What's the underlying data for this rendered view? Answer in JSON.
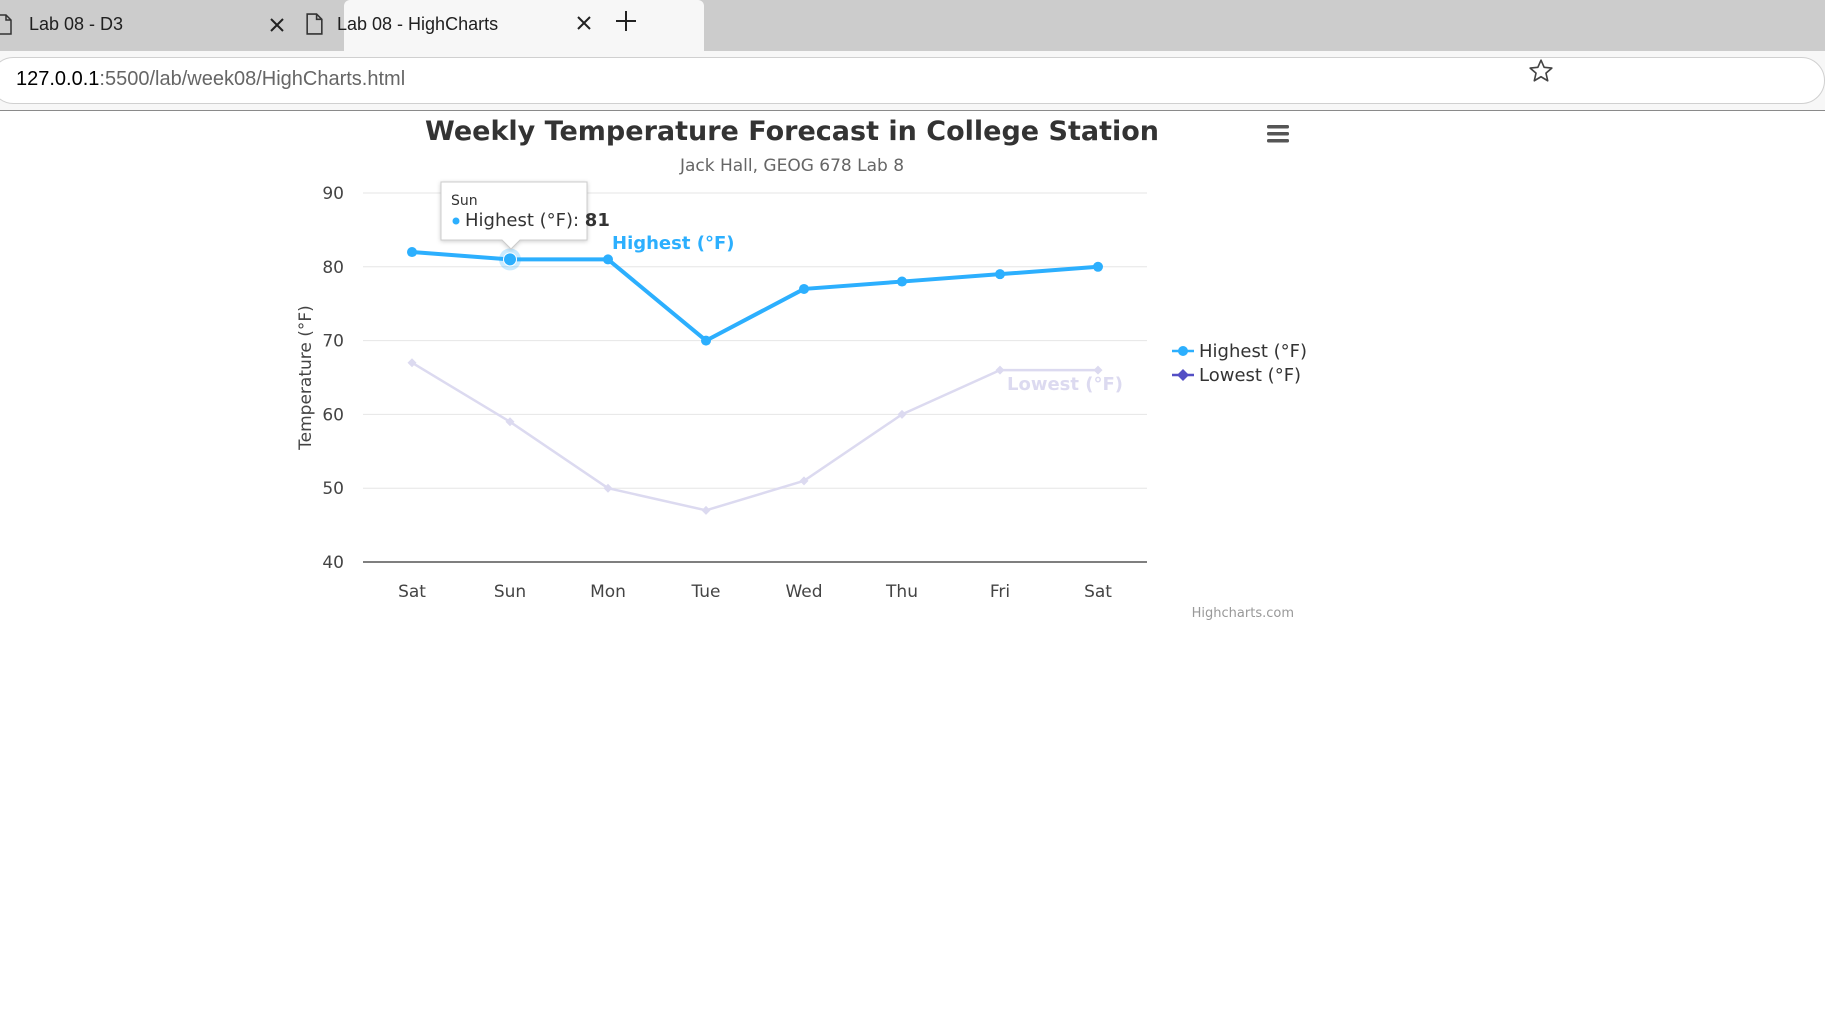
{
  "browser": {
    "tabs": [
      {
        "title": "Lab 08 - D3",
        "active": false
      },
      {
        "title": "Lab 08 - HighCharts",
        "active": true
      }
    ],
    "url_host": "127.0.0.1",
    "url_path": ":5500/lab/week08/HighCharts.html"
  },
  "chart_data": {
    "type": "line",
    "title": "Weekly Temperature Forecast in College Station",
    "subtitle": "Jack Hall, GEOG 678 Lab 8",
    "ylabel": "Temperature (°F)",
    "xlabel": "",
    "categories": [
      "Sat",
      "Sun",
      "Mon",
      "Tue",
      "Wed",
      "Thu",
      "Fri",
      "Sat"
    ],
    "ylim": [
      40,
      90
    ],
    "yticks": [
      40,
      50,
      60,
      70,
      80,
      90
    ],
    "grid": true,
    "legend_position": "right",
    "series": [
      {
        "name": "Highest (°F)",
        "values": [
          82,
          81,
          81,
          70,
          77,
          78,
          79,
          80
        ],
        "color": "#2caffe",
        "marker": "circle"
      },
      {
        "name": "Lowest (°F)",
        "values": [
          67,
          59,
          50,
          47,
          51,
          60,
          66,
          66
        ],
        "color": "#544fc5",
        "marker": "diamond"
      }
    ],
    "tooltip": {
      "category": "Sun",
      "series": "Highest (°F)",
      "value": "81"
    },
    "credit": "Highcharts.com"
  }
}
